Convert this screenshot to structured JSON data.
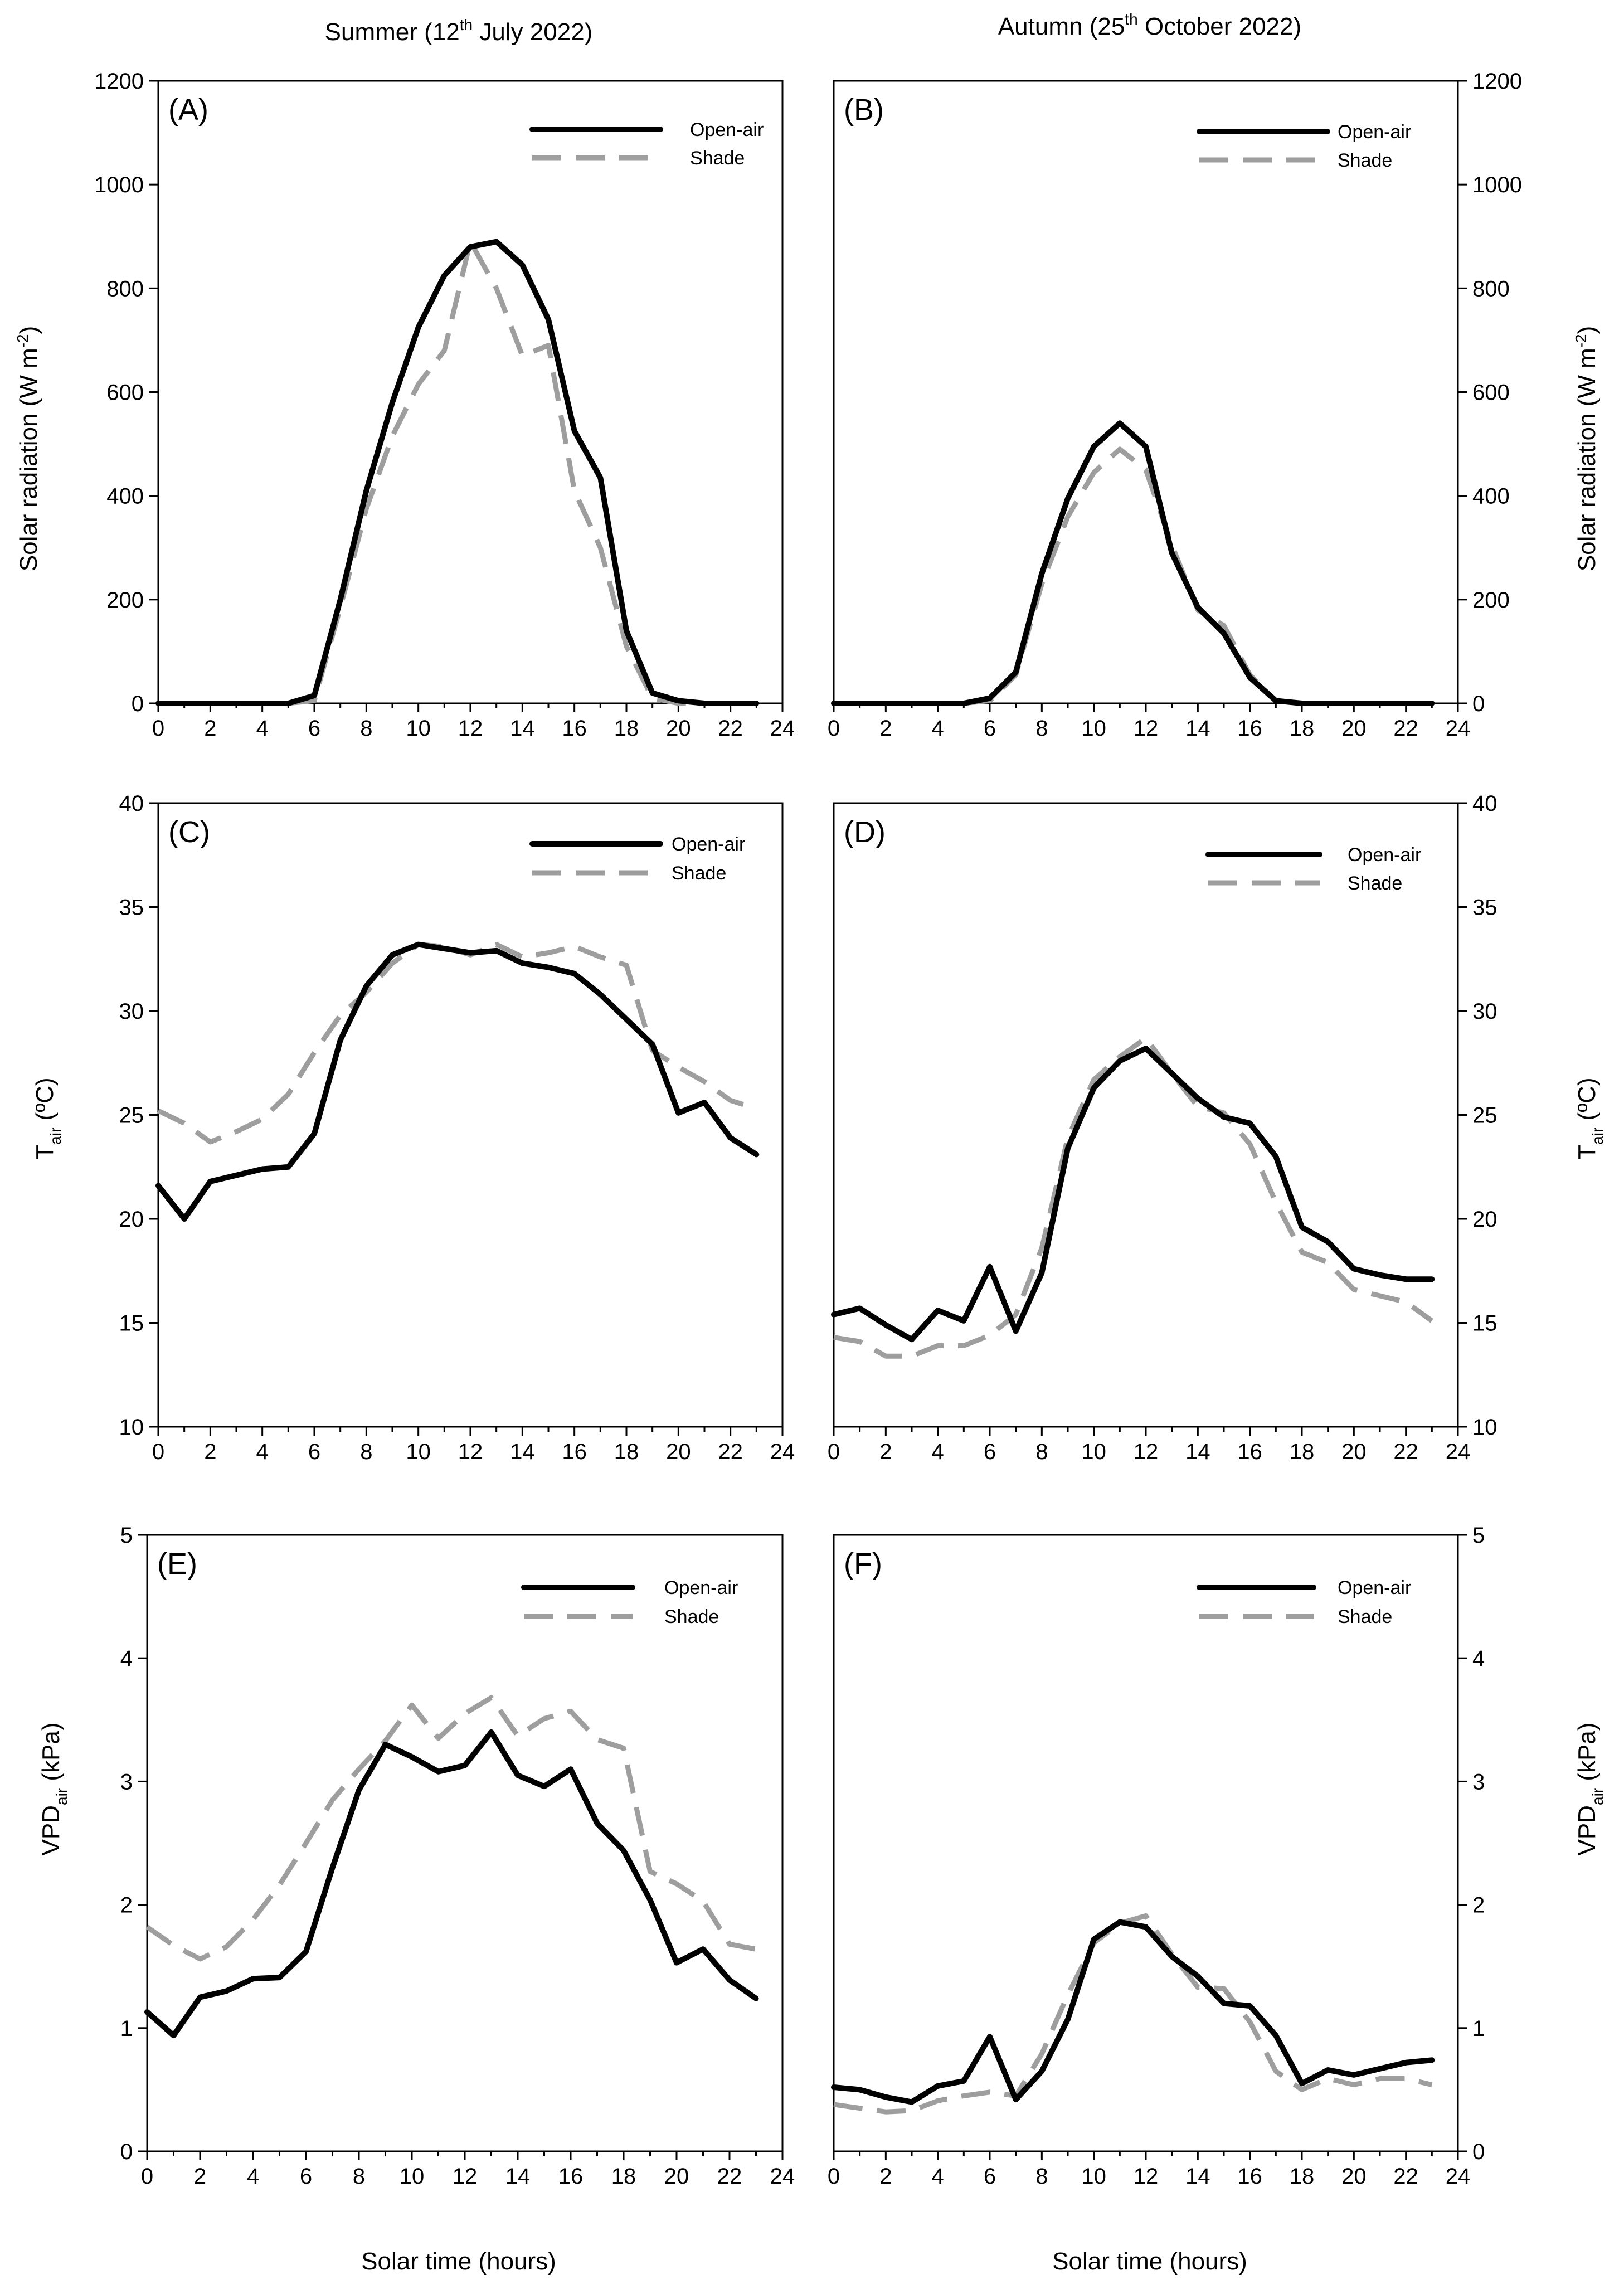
{
  "figure": {
    "column_titles": {
      "left": {
        "pre": "Summer (12",
        "sup": "th",
        "post": " July 2022)"
      },
      "right": {
        "pre": "Autumn (25",
        "sup": "th",
        "post": " October 2022)"
      }
    },
    "xlabel": "Solar time (hours)",
    "legend": {
      "open": "Open-air",
      "shade": "Shade"
    },
    "colors": {
      "open": "#000000",
      "shade": "#9e9e9e"
    }
  },
  "chart_data": [
    {
      "id": "A",
      "label": "(A)",
      "type": "line",
      "title": "Summer (12th July 2022)",
      "ylabel": {
        "main": "Solar radiation (W m",
        "sup": "-2",
        "tail": ")"
      },
      "xlim": [
        0,
        24
      ],
      "ylim": [
        0,
        1200
      ],
      "xticks": [
        "0",
        "2",
        "4",
        "6",
        "8",
        "10",
        "12",
        "14",
        "16",
        "18",
        "20",
        "22",
        "24"
      ],
      "yticks": [
        "0",
        "200",
        "400",
        "600",
        "800",
        "1000",
        "1200"
      ],
      "x": [
        0,
        1,
        2,
        3,
        4,
        5,
        6,
        7,
        8,
        9,
        10,
        11,
        12,
        13,
        14,
        15,
        16,
        17,
        18,
        19,
        20,
        21,
        22,
        23
      ],
      "series": [
        {
          "name": "Open-air",
          "values": [
            0,
            0,
            0,
            0,
            0,
            0,
            15,
            200,
            410,
            580,
            725,
            825,
            880,
            890,
            845,
            740,
            525,
            435,
            140,
            20,
            5,
            0,
            0,
            0
          ]
        },
        {
          "name": "Shade",
          "values": [
            0,
            0,
            0,
            0,
            0,
            0,
            5,
            185,
            375,
            515,
            615,
            680,
            890,
            800,
            670,
            690,
            410,
            300,
            110,
            10,
            0,
            0,
            0,
            0
          ]
        }
      ]
    },
    {
      "id": "B",
      "label": "(B)",
      "type": "line",
      "title": "Autumn (25th October 2022)",
      "ylabel": {
        "main": "Solar radiation (W m",
        "sup": "-2",
        "tail": ")"
      },
      "xlim": [
        0,
        24
      ],
      "ylim": [
        0,
        1200
      ],
      "xticks": [
        "0",
        "2",
        "4",
        "6",
        "8",
        "10",
        "12",
        "14",
        "16",
        "18",
        "20",
        "22",
        "24"
      ],
      "yticks": [
        "0",
        "200",
        "400",
        "600",
        "800",
        "1000",
        "1200"
      ],
      "x": [
        0,
        1,
        2,
        3,
        4,
        5,
        6,
        7,
        8,
        9,
        10,
        11,
        12,
        13,
        14,
        15,
        16,
        17,
        18,
        19,
        20,
        21,
        22,
        23
      ],
      "series": [
        {
          "name": "Open-air",
          "values": [
            0,
            0,
            0,
            0,
            0,
            0,
            10,
            60,
            250,
            395,
            495,
            540,
            495,
            290,
            185,
            135,
            50,
            5,
            0,
            0,
            0,
            0,
            0,
            0
          ]
        },
        {
          "name": "Shade",
          "values": [
            0,
            0,
            0,
            0,
            0,
            0,
            5,
            55,
            230,
            360,
            445,
            490,
            450,
            305,
            180,
            150,
            55,
            5,
            0,
            0,
            0,
            0,
            0,
            0
          ]
        }
      ]
    },
    {
      "id": "C",
      "label": "(C)",
      "type": "line",
      "ylabel": {
        "main": "T",
        "sub": "air",
        "tail": " (ºC)"
      },
      "xlim": [
        0,
        24
      ],
      "ylim": [
        10,
        40
      ],
      "xticks": [
        "0",
        "2",
        "4",
        "6",
        "8",
        "10",
        "12",
        "14",
        "16",
        "18",
        "20",
        "22",
        "24"
      ],
      "yticks": [
        "10",
        "15",
        "20",
        "25",
        "30",
        "35",
        "40"
      ],
      "x": [
        0,
        1,
        2,
        3,
        4,
        5,
        6,
        7,
        8,
        9,
        10,
        11,
        12,
        13,
        14,
        15,
        16,
        17,
        18,
        19,
        20,
        21,
        22,
        23
      ],
      "series": [
        {
          "name": "Open-air",
          "values": [
            21.6,
            20.0,
            21.8,
            22.1,
            22.4,
            22.5,
            24.1,
            28.6,
            31.2,
            32.7,
            33.2,
            33.0,
            32.8,
            32.9,
            32.3,
            32.1,
            31.8,
            30.8,
            29.6,
            28.4,
            25.1,
            25.6,
            23.9,
            23.1
          ]
        },
        {
          "name": "Shade",
          "values": [
            25.2,
            24.6,
            23.7,
            24.2,
            24.8,
            26.0,
            28.0,
            29.8,
            30.9,
            32.3,
            33.2,
            33.1,
            32.7,
            33.2,
            32.6,
            32.8,
            33.1,
            32.6,
            32.2,
            28.1,
            27.3,
            26.6,
            25.7,
            25.3
          ]
        }
      ]
    },
    {
      "id": "D",
      "label": "(D)",
      "type": "line",
      "ylabel": {
        "main": "T",
        "sub": "air",
        "tail": " (ºC)"
      },
      "xlim": [
        0,
        24
      ],
      "ylim": [
        10,
        40
      ],
      "xticks": [
        "0",
        "2",
        "4",
        "6",
        "8",
        "10",
        "12",
        "14",
        "16",
        "18",
        "20",
        "22",
        "24"
      ],
      "yticks": [
        "10",
        "15",
        "20",
        "25",
        "30",
        "35",
        "40"
      ],
      "x": [
        0,
        1,
        2,
        3,
        4,
        5,
        6,
        7,
        8,
        9,
        10,
        11,
        12,
        13,
        14,
        15,
        16,
        17,
        18,
        19,
        20,
        21,
        22,
        23
      ],
      "series": [
        {
          "name": "Open-air",
          "values": [
            15.4,
            15.7,
            14.9,
            14.2,
            15.6,
            15.1,
            17.7,
            14.6,
            17.4,
            23.4,
            26.3,
            27.6,
            28.2,
            27.0,
            25.8,
            24.9,
            24.6,
            23.0,
            19.6,
            18.9,
            17.6,
            17.3,
            17.1,
            17.1
          ]
        },
        {
          "name": "Shade",
          "values": [
            14.3,
            14.1,
            13.4,
            13.4,
            13.9,
            13.9,
            14.4,
            15.4,
            18.6,
            23.9,
            26.7,
            27.8,
            28.7,
            27.0,
            25.4,
            25.1,
            23.6,
            20.8,
            18.4,
            17.9,
            16.6,
            16.3,
            16.0,
            15.1
          ]
        }
      ]
    },
    {
      "id": "E",
      "label": "(E)",
      "type": "line",
      "ylabel": {
        "main": "VPD",
        "sub": "air",
        "tail": " (kPa)"
      },
      "xlim": [
        0,
        24
      ],
      "ylim": [
        0,
        5
      ],
      "xticks": [
        "0",
        "2",
        "4",
        "6",
        "8",
        "10",
        "12",
        "14",
        "16",
        "18",
        "20",
        "22",
        "24"
      ],
      "yticks": [
        "0",
        "1",
        "2",
        "3",
        "4",
        "5"
      ],
      "x": [
        0,
        1,
        2,
        3,
        4,
        5,
        6,
        7,
        8,
        9,
        10,
        11,
        12,
        13,
        14,
        15,
        16,
        17,
        18,
        19,
        20,
        21,
        22,
        23
      ],
      "series": [
        {
          "name": "Open-air",
          "values": [
            1.13,
            0.94,
            1.25,
            1.3,
            1.4,
            1.41,
            1.62,
            2.3,
            2.93,
            3.3,
            3.2,
            3.08,
            3.13,
            3.4,
            3.05,
            2.96,
            3.1,
            2.66,
            2.44,
            2.04,
            1.53,
            1.64,
            1.39,
            1.24
          ]
        },
        {
          "name": "Shade",
          "values": [
            1.82,
            1.67,
            1.56,
            1.66,
            1.88,
            2.16,
            2.5,
            2.85,
            3.1,
            3.33,
            3.62,
            3.35,
            3.55,
            3.68,
            3.37,
            3.51,
            3.57,
            3.34,
            3.27,
            2.27,
            2.17,
            2.03,
            1.68,
            1.64
          ]
        }
      ]
    },
    {
      "id": "F",
      "label": "(F)",
      "type": "line",
      "ylabel": {
        "main": "VPD",
        "sub": "air",
        "tail": " (kPa)"
      },
      "xlim": [
        0,
        24
      ],
      "ylim": [
        0,
        5
      ],
      "xticks": [
        "0",
        "2",
        "4",
        "6",
        "8",
        "10",
        "12",
        "14",
        "16",
        "18",
        "20",
        "22",
        "24"
      ],
      "yticks": [
        "0",
        "1",
        "2",
        "3",
        "4",
        "5"
      ],
      "x": [
        0,
        1,
        2,
        3,
        4,
        5,
        6,
        7,
        8,
        9,
        10,
        11,
        12,
        13,
        14,
        15,
        16,
        17,
        18,
        19,
        20,
        21,
        22,
        23
      ],
      "series": [
        {
          "name": "Open-air",
          "values": [
            0.52,
            0.5,
            0.44,
            0.4,
            0.53,
            0.57,
            0.93,
            0.42,
            0.65,
            1.07,
            1.72,
            1.86,
            1.82,
            1.58,
            1.42,
            1.2,
            1.18,
            0.94,
            0.55,
            0.66,
            0.62,
            0.67,
            0.72,
            0.74
          ]
        },
        {
          "name": "Shade",
          "values": [
            0.38,
            0.35,
            0.32,
            0.33,
            0.41,
            0.45,
            0.48,
            0.45,
            0.79,
            1.27,
            1.69,
            1.85,
            1.91,
            1.6,
            1.33,
            1.32,
            1.05,
            0.65,
            0.5,
            0.59,
            0.54,
            0.59,
            0.59,
            0.54
          ]
        }
      ]
    }
  ]
}
